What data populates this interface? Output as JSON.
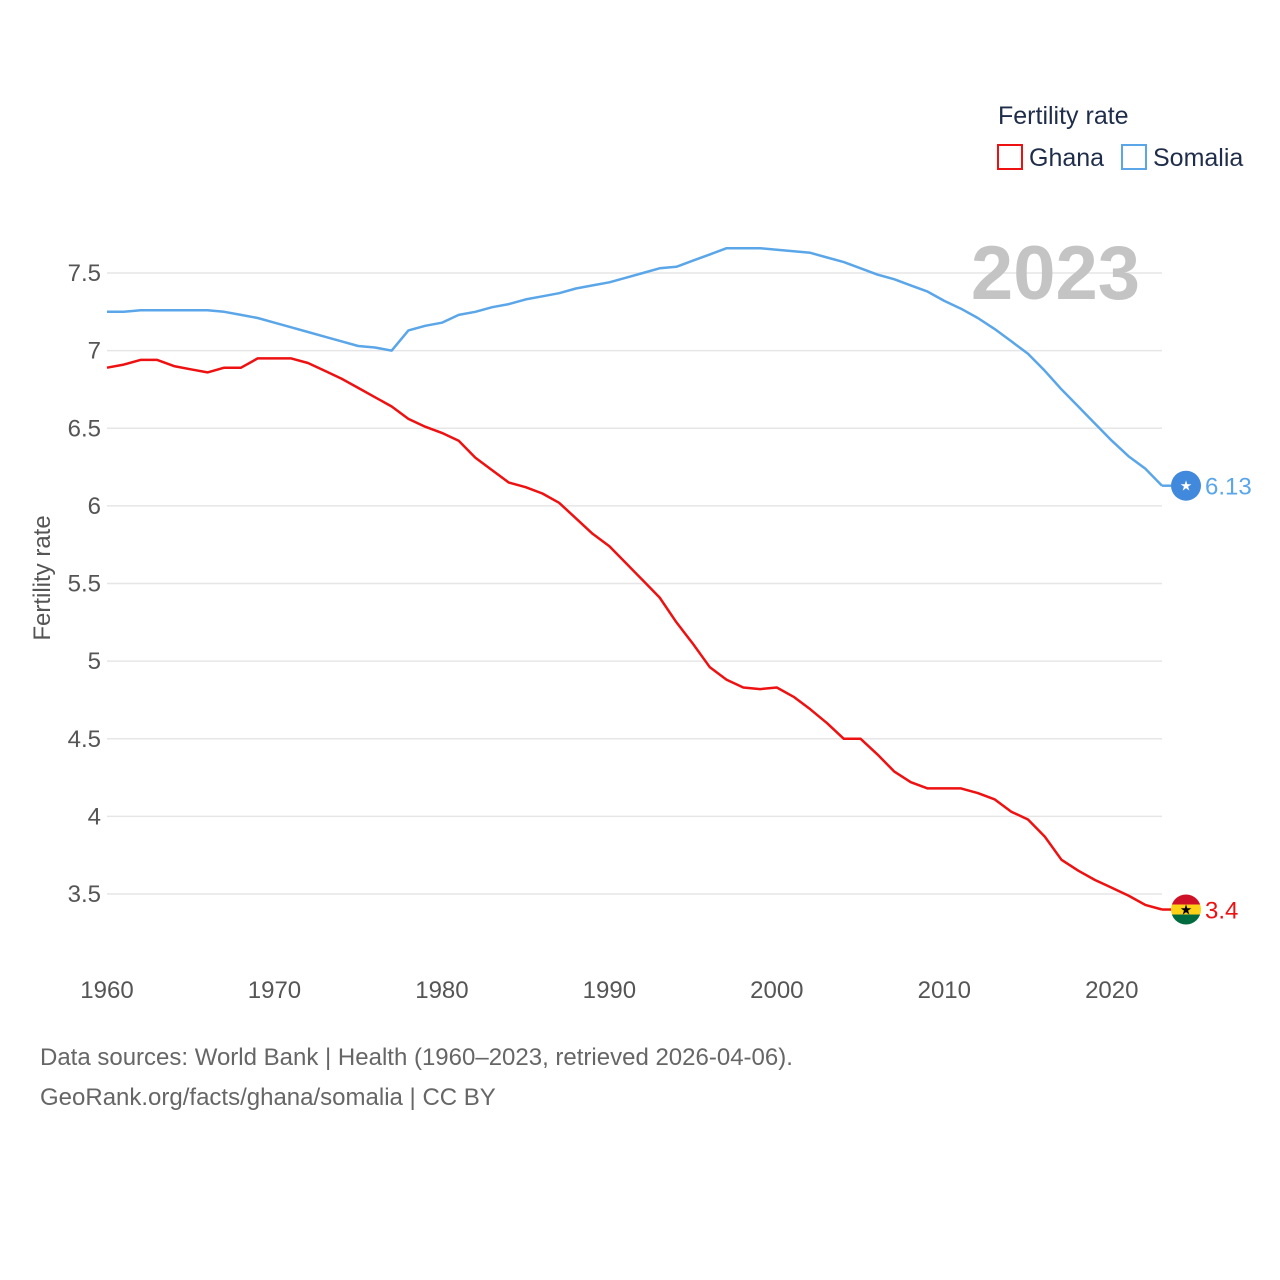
{
  "chart_data": {
    "type": "line",
    "title": "Fertility rate",
    "xlabel": "",
    "ylabel": "Fertility rate",
    "year_label": "2023",
    "xlim": [
      1960,
      2023
    ],
    "ylim": [
      3.1,
      7.64
    ],
    "x_ticks": [
      1960,
      1970,
      1980,
      1990,
      2000,
      2010,
      2020
    ],
    "y_ticks": [
      3.5,
      4,
      4.5,
      5,
      5.5,
      6,
      6.5,
      7,
      7.5
    ],
    "x": [
      1960,
      1961,
      1962,
      1963,
      1964,
      1965,
      1966,
      1967,
      1968,
      1969,
      1970,
      1971,
      1972,
      1973,
      1974,
      1975,
      1976,
      1977,
      1978,
      1979,
      1980,
      1981,
      1982,
      1983,
      1984,
      1985,
      1986,
      1987,
      1988,
      1989,
      1990,
      1991,
      1992,
      1993,
      1994,
      1995,
      1996,
      1997,
      1998,
      1999,
      2000,
      2001,
      2002,
      2003,
      2004,
      2005,
      2006,
      2007,
      2008,
      2009,
      2010,
      2011,
      2012,
      2013,
      2014,
      2015,
      2016,
      2017,
      2018,
      2019,
      2020,
      2021,
      2022,
      2023
    ],
    "series": [
      {
        "name": "Ghana",
        "color": "#ee1111",
        "end_label": "3.4",
        "flag": "ghana",
        "values": [
          6.89,
          6.91,
          6.94,
          6.94,
          6.9,
          6.88,
          6.86,
          6.89,
          6.89,
          6.95,
          6.95,
          6.95,
          6.92,
          6.87,
          6.82,
          6.76,
          6.7,
          6.64,
          6.56,
          6.51,
          6.47,
          6.42,
          6.31,
          6.23,
          6.15,
          6.12,
          6.08,
          6.02,
          5.92,
          5.82,
          5.74,
          5.63,
          5.52,
          5.41,
          5.25,
          5.11,
          4.96,
          4.88,
          4.83,
          4.82,
          4.83,
          4.77,
          4.69,
          4.6,
          4.5,
          4.5,
          4.4,
          4.29,
          4.22,
          4.18,
          4.18,
          4.18,
          4.15,
          4.11,
          4.03,
          3.98,
          3.87,
          3.72,
          3.65,
          3.59,
          3.54,
          3.49,
          3.43,
          3.4
        ]
      },
      {
        "name": "Somalia",
        "color": "#5aa6e8",
        "end_label": "6.13",
        "flag": "somalia",
        "values": [
          7.25,
          7.25,
          7.26,
          7.26,
          7.26,
          7.26,
          7.26,
          7.25,
          7.23,
          7.21,
          7.18,
          7.15,
          7.12,
          7.09,
          7.06,
          7.03,
          7.02,
          7.0,
          7.13,
          7.16,
          7.18,
          7.23,
          7.25,
          7.28,
          7.3,
          7.33,
          7.35,
          7.37,
          7.4,
          7.42,
          7.44,
          7.47,
          7.5,
          7.53,
          7.54,
          7.58,
          7.62,
          7.66,
          7.66,
          7.66,
          7.65,
          7.64,
          7.63,
          7.6,
          7.57,
          7.53,
          7.49,
          7.46,
          7.42,
          7.38,
          7.32,
          7.27,
          7.21,
          7.14,
          7.06,
          6.98,
          6.87,
          6.75,
          6.64,
          6.53,
          6.42,
          6.32,
          6.24,
          6.13
        ]
      }
    ],
    "legend_position": "top-right"
  },
  "source": {
    "line1": "Data sources: World Bank | Health (1960–2023, retrieved 2026-04-06).",
    "line2": "GeoRank.org/facts/ghana/somalia | CC BY"
  }
}
